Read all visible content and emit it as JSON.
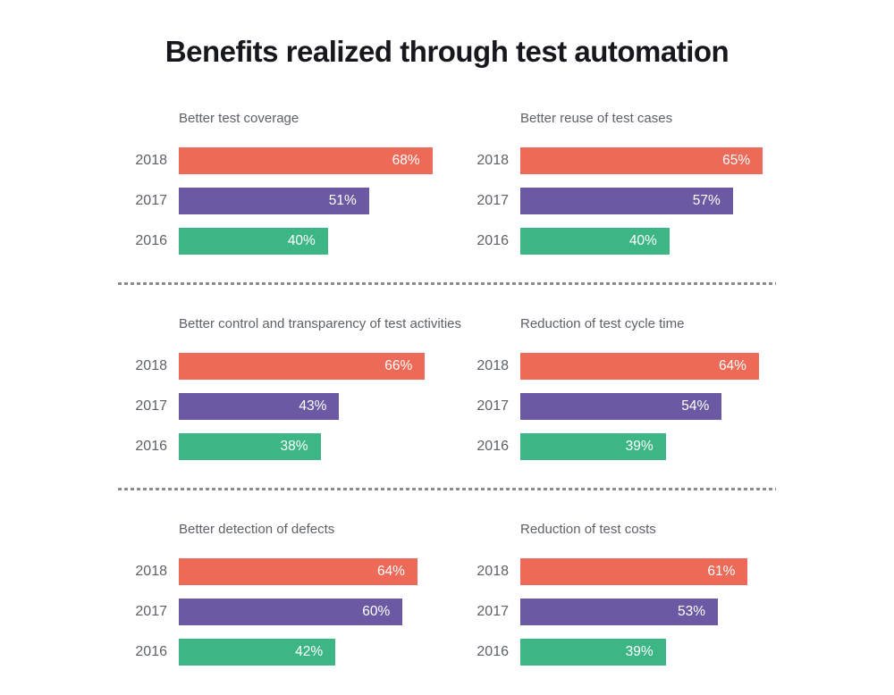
{
  "page_title": "Benefits realized through test automation",
  "colors": {
    "series_2018": "#EC6A57",
    "series_2017": "#6B59A3",
    "series_2016": "#3CB685",
    "title_text": "#16181D",
    "label_text": "#5C6168",
    "divider": "#8C8C8C",
    "value_label_text": "#FFFFFF"
  },
  "chart_data": [
    {
      "type": "bar",
      "orientation": "horizontal",
      "title": "Better test coverage",
      "categories": [
        "2018",
        "2017",
        "2016"
      ],
      "values": [
        68,
        51,
        40
      ],
      "value_suffix": "%",
      "xlim": [
        0,
        70
      ],
      "grid": false,
      "value_labels": "inside-end"
    },
    {
      "type": "bar",
      "orientation": "horizontal",
      "title": "Better reuse of test cases",
      "categories": [
        "2018",
        "2017",
        "2016"
      ],
      "values": [
        65,
        57,
        40
      ],
      "value_suffix": "%",
      "xlim": [
        0,
        70
      ],
      "grid": false,
      "value_labels": "inside-end"
    },
    {
      "type": "bar",
      "orientation": "horizontal",
      "title": "Better control and transparency of test activities",
      "categories": [
        "2018",
        "2017",
        "2016"
      ],
      "values": [
        66,
        43,
        38
      ],
      "value_suffix": "%",
      "xlim": [
        0,
        70
      ],
      "grid": false,
      "value_labels": "inside-end"
    },
    {
      "type": "bar",
      "orientation": "horizontal",
      "title": "Reduction of test cycle time",
      "categories": [
        "2018",
        "2017",
        "2016"
      ],
      "values": [
        64,
        54,
        39
      ],
      "value_suffix": "%",
      "xlim": [
        0,
        70
      ],
      "grid": false,
      "value_labels": "inside-end"
    },
    {
      "type": "bar",
      "orientation": "horizontal",
      "title": "Better detection of defects",
      "categories": [
        "2018",
        "2017",
        "2016"
      ],
      "values": [
        64,
        60,
        42
      ],
      "value_suffix": "%",
      "xlim": [
        0,
        70
      ],
      "grid": false,
      "value_labels": "inside-end"
    },
    {
      "type": "bar",
      "orientation": "horizontal",
      "title": "Reduction of test costs",
      "categories": [
        "2018",
        "2017",
        "2016"
      ],
      "values": [
        61,
        53,
        39
      ],
      "value_suffix": "%",
      "xlim": [
        0,
        70
      ],
      "grid": false,
      "value_labels": "inside-end"
    }
  ]
}
